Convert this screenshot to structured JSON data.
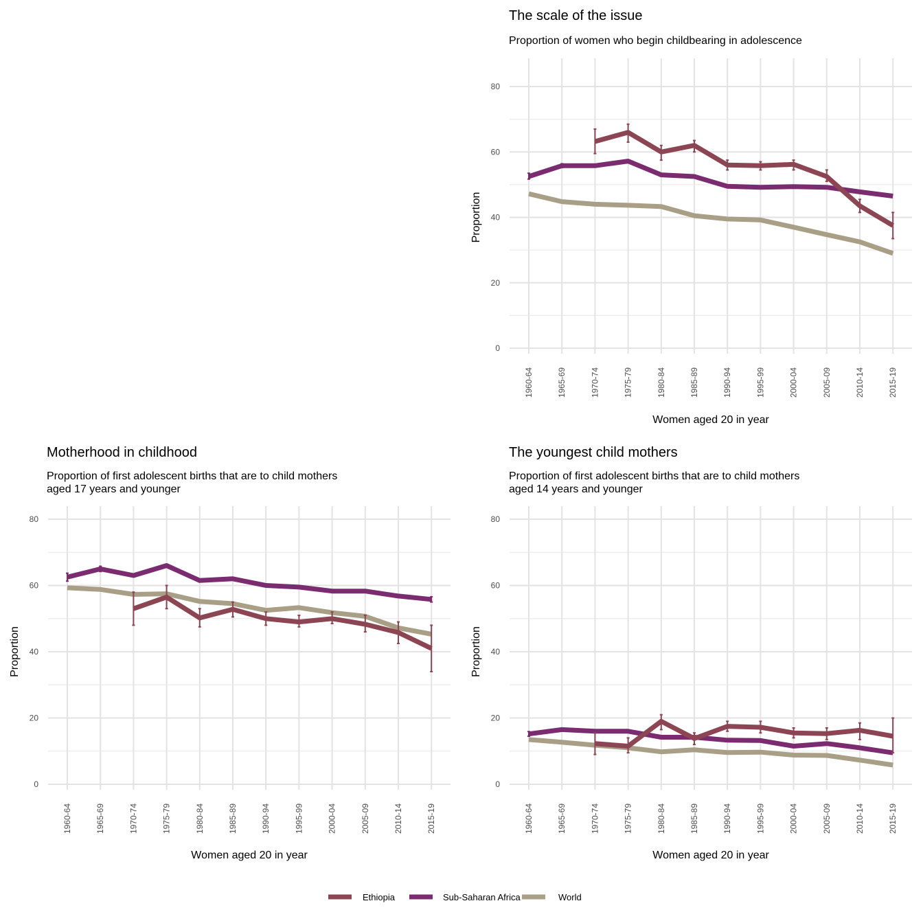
{
  "chart_data": [
    {
      "type": "line",
      "title": "The scale of the issue",
      "subtitle": [
        "Proportion of women who begin childbearing in adolescence"
      ],
      "xlabel": "Women aged 20 in year",
      "ylabel": "Proportion",
      "ylim": [
        0,
        80
      ],
      "yticks": [
        0,
        20,
        40,
        60,
        80
      ],
      "grid": true,
      "categories": [
        "1960-64",
        "1965-69",
        "1970-74",
        "1975-79",
        "1980-84",
        "1985-89",
        "1990-94",
        "1995-99",
        "2000-04",
        "2005-09",
        "2010-14",
        "2015-19"
      ],
      "series": [
        {
          "name": "World",
          "values": [
            47.2,
            44.8,
            44.0,
            43.7,
            43.3,
            40.5,
            39.5,
            39.2,
            37.0,
            34.7,
            32.5,
            29.0
          ]
        },
        {
          "name": "Sub-Saharan Africa",
          "values": [
            52.5,
            55.8,
            55.8,
            57.2,
            53.0,
            52.5,
            49.5,
            49.2,
            49.4,
            49.2,
            47.8,
            46.5
          ],
          "lower": [
            51.7,
            55.2,
            null,
            null,
            null,
            null,
            null,
            null,
            null,
            null,
            null,
            null
          ],
          "upper": [
            53.5,
            56.4,
            null,
            null,
            null,
            null,
            null,
            null,
            null,
            null,
            null,
            null
          ]
        },
        {
          "name": "Ethiopia",
          "values": [
            null,
            null,
            63.2,
            66.0,
            60.0,
            62.0,
            56.0,
            55.8,
            56.2,
            52.5,
            43.5,
            37.5
          ],
          "lower": [
            null,
            null,
            59.5,
            63.0,
            57.5,
            60.0,
            54.5,
            54.5,
            54.5,
            51.0,
            41.5,
            33.5
          ],
          "upper": [
            null,
            null,
            67.0,
            68.5,
            62.0,
            63.5,
            57.5,
            57.0,
            57.5,
            54.5,
            45.5,
            41.5
          ]
        }
      ]
    },
    {
      "type": "line",
      "title": "Motherhood in childhood",
      "subtitle": [
        "Proportion of first adolescent births that are to child mothers",
        "aged 17 years and younger"
      ],
      "xlabel": "Women aged 20 in year",
      "ylabel": "Proportion",
      "ylim": [
        0,
        80
      ],
      "yticks": [
        0,
        20,
        40,
        60,
        80
      ],
      "grid": true,
      "categories": [
        "1960-64",
        "1965-69",
        "1970-74",
        "1975-79",
        "1980-84",
        "1985-89",
        "1990-94",
        "1995-99",
        "2000-04",
        "2005-09",
        "2010-14",
        "2015-19"
      ],
      "series": [
        {
          "name": "World",
          "values": [
            59.3,
            58.8,
            57.3,
            57.5,
            55.2,
            54.5,
            52.5,
            53.3,
            51.8,
            50.7,
            47.2,
            45.3
          ]
        },
        {
          "name": "Sub-Saharan Africa",
          "values": [
            62.5,
            65.0,
            63.0,
            66.0,
            61.5,
            62.0,
            60.0,
            59.5,
            58.3,
            58.3,
            56.8,
            55.8
          ],
          "lower": [
            61.3,
            64.2,
            null,
            null,
            null,
            null,
            null,
            null,
            null,
            null,
            null,
            55.0
          ],
          "upper": [
            63.7,
            65.8,
            null,
            null,
            null,
            null,
            null,
            null,
            null,
            null,
            null,
            56.6
          ]
        },
        {
          "name": "Ethiopia",
          "values": [
            null,
            null,
            53.0,
            56.5,
            50.2,
            52.8,
            50.0,
            49.0,
            50.0,
            48.3,
            45.8,
            41.0
          ],
          "lower": [
            null,
            null,
            48.0,
            53.0,
            47.5,
            50.5,
            48.0,
            47.5,
            48.5,
            46.0,
            42.5,
            34.0
          ],
          "upper": [
            null,
            null,
            58.0,
            60.0,
            53.0,
            55.0,
            52.0,
            51.0,
            52.0,
            51.0,
            49.0,
            48.0
          ]
        }
      ]
    },
    {
      "type": "line",
      "title": "The youngest child mothers",
      "subtitle": [
        "Proportion of first adolescent births that are to child mothers",
        "aged 14 years and younger"
      ],
      "xlabel": "Women aged 20 in year",
      "ylabel": "Proportion",
      "ylim": [
        0,
        80
      ],
      "yticks": [
        0,
        20,
        40,
        60,
        80
      ],
      "grid": true,
      "categories": [
        "1960-64",
        "1965-69",
        "1970-74",
        "1975-79",
        "1980-84",
        "1985-89",
        "1990-94",
        "1995-99",
        "2000-04",
        "2005-09",
        "2010-14",
        "2015-19"
      ],
      "series": [
        {
          "name": "World",
          "values": [
            13.5,
            12.7,
            11.8,
            11.0,
            9.8,
            10.4,
            9.6,
            9.7,
            8.8,
            8.7,
            7.3,
            5.8
          ]
        },
        {
          "name": "Sub-Saharan Africa",
          "values": [
            15.2,
            16.5,
            16.0,
            16.0,
            14.2,
            14.2,
            13.3,
            13.2,
            11.5,
            12.3,
            11.0,
            9.5
          ],
          "lower": [
            14.5,
            null,
            null,
            null,
            null,
            null,
            null,
            null,
            null,
            null,
            null,
            null
          ],
          "upper": [
            15.9,
            null,
            null,
            null,
            null,
            null,
            null,
            null,
            null,
            null,
            null,
            null
          ]
        },
        {
          "name": "Ethiopia",
          "values": [
            null,
            null,
            12.3,
            11.5,
            19.0,
            13.8,
            17.5,
            17.2,
            15.5,
            15.3,
            16.3,
            14.5
          ],
          "lower": [
            null,
            null,
            9.0,
            9.5,
            16.5,
            12.0,
            16.0,
            15.5,
            14.0,
            13.5,
            13.5,
            9.5
          ],
          "upper": [
            null,
            null,
            15.5,
            14.0,
            21.0,
            15.5,
            19.0,
            19.0,
            17.0,
            17.0,
            18.5,
            20.0
          ]
        }
      ]
    }
  ],
  "legend": {
    "position": "bottom",
    "items": [
      {
        "name": "Ethiopia",
        "color": "#8b4553"
      },
      {
        "name": "Sub-Saharan Africa",
        "color": "#7b2c70"
      },
      {
        "name": "World",
        "color": "#a89f86"
      }
    ]
  }
}
